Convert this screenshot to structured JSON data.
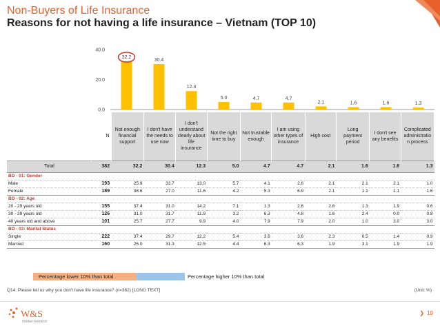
{
  "header": {
    "title": "Non-Buyers of Life Insurance",
    "subtitle": "Reasons for not having a life insurance – Vietnam (TOP 10)"
  },
  "chart_data": {
    "type": "bar",
    "categories": [
      "Not enough financial support",
      "I don't have the needs to use now",
      "I don't understand clearly about life insurance",
      "Not the right time to buy",
      "Not trustable enough",
      "I am using other types of insurance",
      "High cost",
      "Long payment period",
      "I don't see any benefits",
      "Complicated administration process"
    ],
    "values": [
      32.2,
      30.4,
      12.3,
      5.0,
      4.7,
      4.7,
      2.1,
      1.6,
      1.6,
      1.3
    ],
    "value_labels": [
      "32.2",
      "30.4",
      "12.3",
      "5.0",
      "4.7",
      "4.7",
      "2.1",
      "1.6",
      "1.6",
      "1.3"
    ],
    "ylim": [
      0,
      40
    ],
    "yticks": [
      "0.0",
      "20.0",
      "40.0"
    ],
    "bar_color": "#ffc000",
    "highlight_color": "#c0392b",
    "highlight_index": 0,
    "grid": false
  },
  "table": {
    "n_header": "N",
    "column_headers": [
      "Not enough financial support",
      "I don't have the needs to use now",
      "I don't understand clearly about life insurance",
      "Not the right time to buy",
      "Not trustable enough",
      "I am using other types of insurance",
      "High cost",
      "Long payment period",
      "I don't see any benefits",
      "Complicated administratio n process"
    ],
    "total": {
      "label": "Total",
      "n": "382",
      "values": [
        "32.2",
        "30.4",
        "12.3",
        "5.0",
        "4.7",
        "4.7",
        "2.1",
        "1.6",
        "1.6",
        "1.3"
      ]
    },
    "sections": [
      {
        "title": "BD - 01: Gender",
        "rows": [
          {
            "label": "Male",
            "n": "193",
            "values": [
              "25.9",
              "33.7",
              "13.0",
              "5.7",
              "4.1",
              "2.6",
              "2.1",
              "2.1",
              "2.1",
              "1.0"
            ]
          },
          {
            "label": "Female",
            "n": "189",
            "values": [
              "38.6",
              "27.0",
              "11.6",
              "4.2",
              "5.3",
              "6.9",
              "2.1",
              "1.1",
              "1.1",
              "1.6"
            ]
          }
        ]
      },
      {
        "title": "BD - 02: Age",
        "rows": [
          {
            "label": "20 - 29 years old",
            "n": "155",
            "values": [
              "37.4",
              "31.0",
              "14.2",
              "7.1",
              "1.3",
              "2.6",
              "2.6",
              "1.3",
              "1.9",
              "0.6"
            ]
          },
          {
            "label": "30 - 39 years old",
            "n": "126",
            "values": [
              "31.0",
              "31.7",
              "11.9",
              "3.2",
              "6.3",
              "4.8",
              "1.6",
              "2.4",
              "0.0",
              "0.8"
            ]
          },
          {
            "label": "40 years old and above",
            "n": "101",
            "values": [
              "25.7",
              "27.7",
              "9.9",
              "4.0",
              "7.9",
              "7.9",
              "2.0",
              "1.0",
              "3.0",
              "3.0"
            ]
          }
        ]
      },
      {
        "title": "BD - 03: Marital Status",
        "rows": [
          {
            "label": "Single",
            "n": "222",
            "values": [
              "37.4",
              "29.7",
              "12.2",
              "5.4",
              "3.6",
              "3.6",
              "2.3",
              "0.5",
              "1.4",
              "0.9"
            ]
          },
          {
            "label": "Married",
            "n": "160",
            "values": [
              "25.0",
              "31.3",
              "12.5",
              "4.4",
              "6.3",
              "6.3",
              "1.9",
              "3.1",
              "1.9",
              "1.9"
            ]
          }
        ]
      }
    ]
  },
  "legend": {
    "lower": {
      "label": "Percentage lower 10% than total",
      "color": "#f4b183"
    },
    "higher": {
      "label": "Percentage higher 10% than total",
      "color": "#9dc3e6"
    }
  },
  "footer": {
    "question": "Q14. Please tell us why you don't have life insurance? (n=382) [LONG TEXT]",
    "unit": "(Unit: %)",
    "logo_text": "W&S",
    "logo_sub": "market research",
    "page_number": "19"
  },
  "colors": {
    "accent": "#e8612c",
    "bar": "#ffc000"
  }
}
